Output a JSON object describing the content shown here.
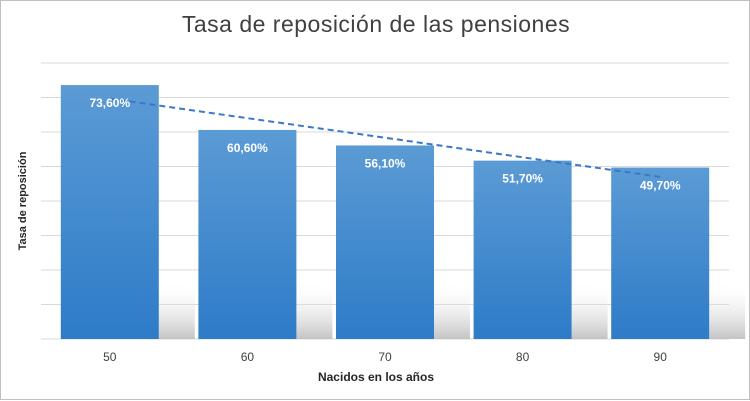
{
  "chart_data": {
    "type": "bar",
    "title": "Tasa de reposición de las pensiones",
    "xlabel": "Nacidos en los años",
    "ylabel": "Tasa de reposición",
    "categories": [
      "50",
      "60",
      "70",
      "80",
      "90"
    ],
    "series": [
      {
        "values": [
          73.6,
          60.6,
          56.1,
          51.7,
          49.7
        ],
        "data_labels": [
          "73,60%",
          "60,60%",
          "56,10%",
          "51,70%",
          "49,70%"
        ]
      }
    ],
    "trendline": {
      "type": "linear",
      "style": "dashed"
    },
    "ylim": [
      0,
      80
    ],
    "grid": true,
    "legend": "none",
    "colors": {
      "bar_top": "#5b9bd5",
      "bar_bottom": "#2e7bc8",
      "trendline": "#3a78c8",
      "grid": "#d9d9d9",
      "text": "#404040"
    }
  }
}
